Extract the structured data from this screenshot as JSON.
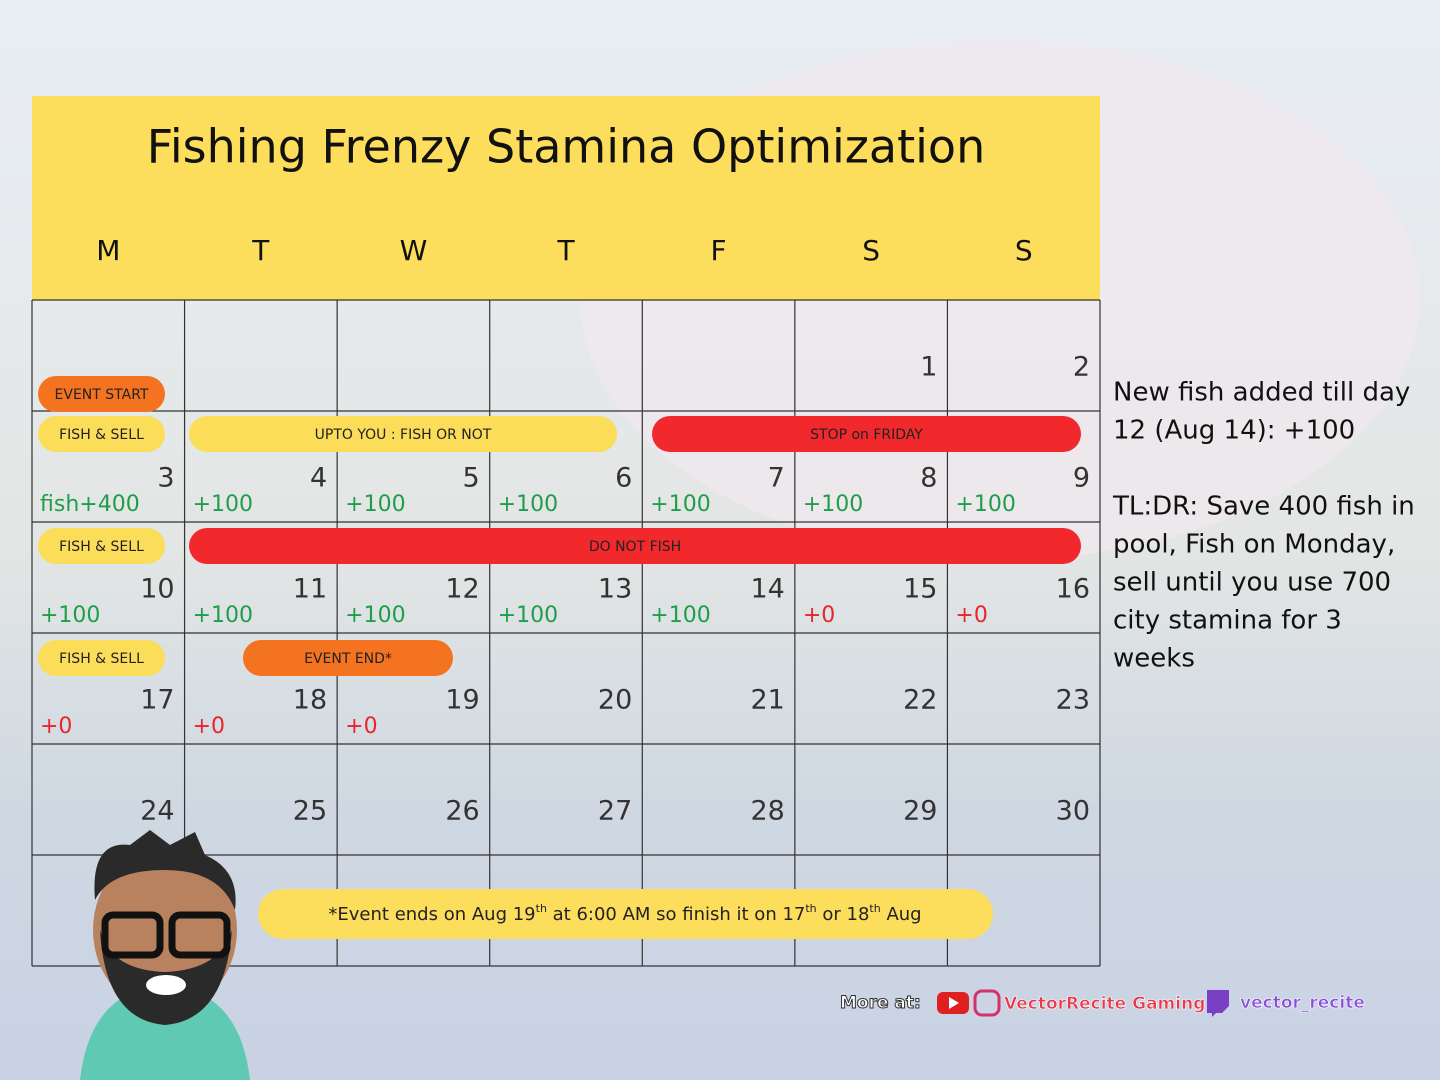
{
  "header": {
    "title": "Fishing Frenzy Stamina Optimization",
    "weekdays": [
      "M",
      "T",
      "W",
      "T",
      "F",
      "S",
      "S"
    ]
  },
  "calendar": {
    "days": [
      {
        "day": 1
      },
      {
        "day": 2
      },
      {
        "day": 3,
        "note": "fish+400",
        "note_color": "#1f9e4a"
      },
      {
        "day": 4,
        "note": "+100",
        "note_color": "#1f9e4a"
      },
      {
        "day": 5,
        "note": "+100",
        "note_color": "#1f9e4a"
      },
      {
        "day": 6,
        "note": "+100",
        "note_color": "#1f9e4a"
      },
      {
        "day": 7,
        "note": "+100",
        "note_color": "#1f9e4a"
      },
      {
        "day": 8,
        "note": "+100",
        "note_color": "#1f9e4a"
      },
      {
        "day": 9,
        "note": "+100",
        "note_color": "#1f9e4a"
      },
      {
        "day": 10,
        "note": "+100",
        "note_color": "#1f9e4a"
      },
      {
        "day": 11,
        "note": "+100",
        "note_color": "#1f9e4a"
      },
      {
        "day": 12,
        "note": "+100",
        "note_color": "#1f9e4a"
      },
      {
        "day": 13,
        "note": "+100",
        "note_color": "#1f9e4a"
      },
      {
        "day": 14,
        "note": "+100",
        "note_color": "#1f9e4a"
      },
      {
        "day": 15,
        "note": "+0",
        "note_color": "#e8262b"
      },
      {
        "day": 16,
        "note": "+0",
        "note_color": "#e8262b"
      },
      {
        "day": 17,
        "note": "+0",
        "note_color": "#e8262b"
      },
      {
        "day": 18,
        "note": "+0",
        "note_color": "#e8262b"
      },
      {
        "day": 19,
        "note": "+0",
        "note_color": "#e8262b"
      },
      {
        "day": 20
      },
      {
        "day": 21
      },
      {
        "day": 22
      },
      {
        "day": 23
      },
      {
        "day": 24
      },
      {
        "day": 25
      },
      {
        "day": 26
      },
      {
        "day": 27
      },
      {
        "day": 28
      },
      {
        "day": 29
      },
      {
        "day": 30
      }
    ],
    "events": [
      {
        "label": "EVENT START",
        "color": "#f47321"
      },
      {
        "label": "FISH & SELL",
        "color": "#fbdd5a"
      },
      {
        "label": "UPTO YOU : FISH OR NOT",
        "color": "#fbdd5a"
      },
      {
        "label": "STOP on FRIDAY",
        "color": "#f2292c"
      },
      {
        "label": "FISH & SELL",
        "color": "#fbdd5a"
      },
      {
        "label": "DO NOT FISH",
        "color": "#f2292c"
      },
      {
        "label": "FISH & SELL",
        "color": "#fbdd5a"
      },
      {
        "label": "EVENT END*",
        "color": "#f47321"
      }
    ],
    "footnote": [
      "*Event ends on Aug 19",
      "th",
      " at 6:00 AM so finish it on 17",
      "th",
      " or 18",
      "th",
      " Aug"
    ]
  },
  "side_notes": [
    [
      "New fish added till day",
      "12 (Aug 14): +100"
    ],
    [
      "TL:DR: Save 400 fish in",
      "pool, Fish on Monday,",
      "sell until you use 700",
      "city stamina for 3",
      "weeks"
    ]
  ],
  "footer": {
    "more": "More at:",
    "channel": "VectorRecite Gaming",
    "twitch": "vector_recite"
  }
}
